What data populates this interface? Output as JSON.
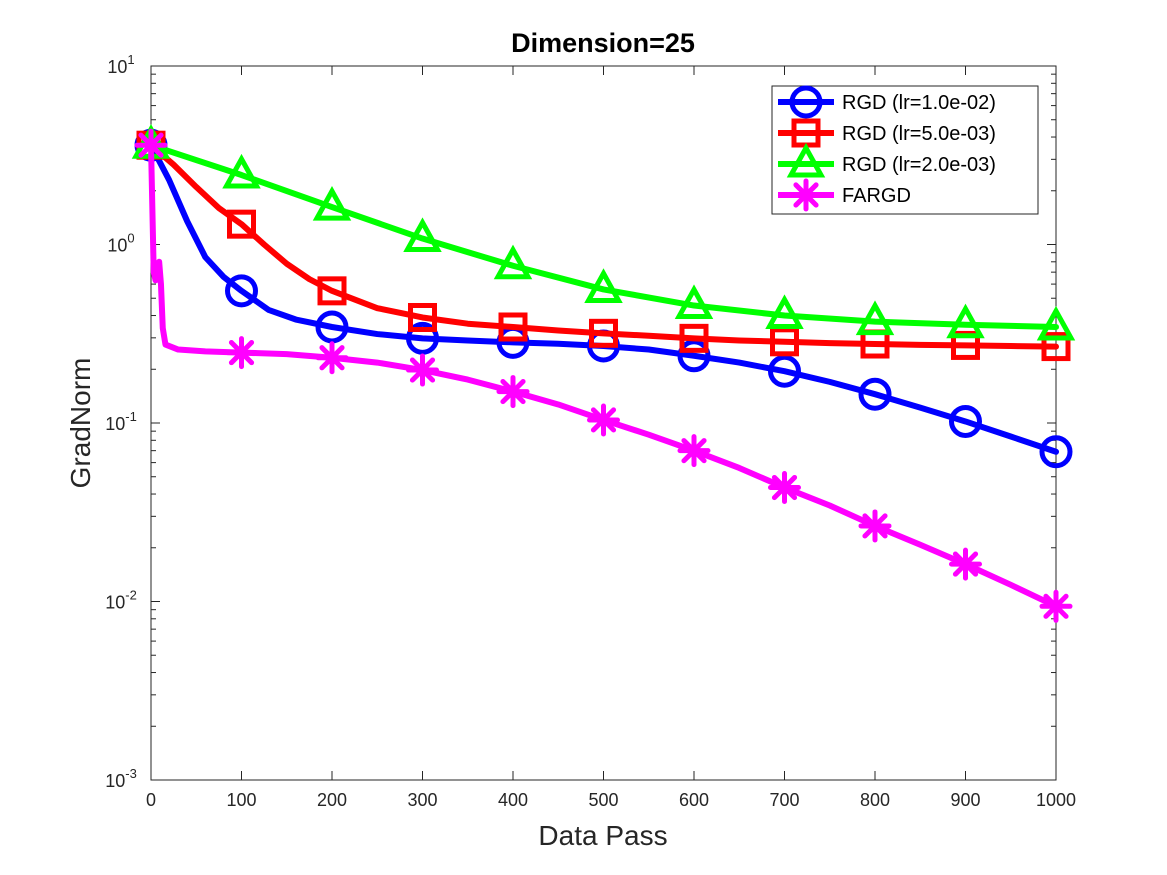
{
  "chart_data": {
    "type": "line",
    "title": "Dimension=25",
    "xlabel": "Data Pass",
    "ylabel": "GradNorm",
    "xlim": [
      0,
      1000
    ],
    "ylim": [
      0.001,
      10
    ],
    "yscale": "log",
    "grid": false,
    "legend_position": "top-right",
    "x_ticks": [
      0,
      100,
      200,
      300,
      400,
      500,
      600,
      700,
      800,
      900,
      1000
    ],
    "y_ticks": [
      {
        "value": 0.001,
        "base": "10",
        "exp": "-3"
      },
      {
        "value": 0.01,
        "base": "10",
        "exp": "-2"
      },
      {
        "value": 0.1,
        "base": "10",
        "exp": "-1"
      },
      {
        "value": 1,
        "base": "10",
        "exp": "0"
      },
      {
        "value": 10,
        "base": "10",
        "exp": "1"
      }
    ],
    "series": [
      {
        "name": "RGD (lr=1.0e-02)",
        "color": "#0000ff",
        "marker": "circle",
        "x": [
          0,
          20,
          40,
          60,
          80,
          100,
          130,
          160,
          200,
          250,
          300,
          350,
          400,
          450,
          500,
          550,
          600,
          650,
          700,
          750,
          800,
          850,
          900,
          950,
          1000
        ],
        "values": [
          3.6,
          2.3,
          1.35,
          0.85,
          0.66,
          0.55,
          0.43,
          0.38,
          0.345,
          0.315,
          0.298,
          0.29,
          0.283,
          0.278,
          0.27,
          0.258,
          0.238,
          0.218,
          0.195,
          0.17,
          0.145,
          0.122,
          0.102,
          0.084,
          0.069
        ],
        "marker_x": [
          0,
          100,
          200,
          300,
          400,
          500,
          600,
          700,
          800,
          900,
          1000
        ],
        "marker_values": [
          3.6,
          0.55,
          0.345,
          0.298,
          0.283,
          0.27,
          0.238,
          0.195,
          0.145,
          0.102,
          0.069
        ]
      },
      {
        "name": "RGD (lr=5.0e-03)",
        "color": "#ff0000",
        "marker": "square",
        "x": [
          0,
          25,
          50,
          75,
          100,
          125,
          150,
          175,
          200,
          250,
          300,
          350,
          400,
          450,
          500,
          550,
          600,
          650,
          700,
          750,
          800,
          850,
          900,
          950,
          1000
        ],
        "values": [
          3.6,
          2.8,
          2.1,
          1.6,
          1.3,
          1.0,
          0.78,
          0.64,
          0.55,
          0.44,
          0.39,
          0.36,
          0.345,
          0.33,
          0.318,
          0.308,
          0.298,
          0.29,
          0.285,
          0.28,
          0.277,
          0.274,
          0.272,
          0.27,
          0.268
        ],
        "marker_x": [
          0,
          100,
          200,
          300,
          400,
          500,
          600,
          700,
          800,
          900,
          1000
        ],
        "marker_values": [
          3.6,
          1.3,
          0.55,
          0.39,
          0.345,
          0.318,
          0.298,
          0.285,
          0.277,
          0.272,
          0.268
        ]
      },
      {
        "name": "RGD (lr=2.0e-03)",
        "color": "#00ff00",
        "marker": "triangle",
        "x": [
          0,
          100,
          200,
          300,
          400,
          500,
          600,
          700,
          800,
          900,
          1000
        ],
        "values": [
          3.6,
          2.45,
          1.62,
          1.08,
          0.76,
          0.56,
          0.455,
          0.4,
          0.37,
          0.355,
          0.345
        ],
        "marker_x": [
          0,
          100,
          200,
          300,
          400,
          500,
          600,
          700,
          800,
          900,
          1000
        ],
        "marker_values": [
          3.6,
          2.45,
          1.62,
          1.08,
          0.76,
          0.56,
          0.455,
          0.4,
          0.37,
          0.355,
          0.345
        ]
      },
      {
        "name": "FARGD",
        "color": "#ff00ff",
        "marker": "asterisk",
        "x": [
          0,
          3,
          5,
          7,
          9,
          11,
          13,
          16,
          30,
          60,
          100,
          150,
          200,
          250,
          300,
          350,
          400,
          450,
          500,
          550,
          600,
          650,
          700,
          750,
          800,
          850,
          900,
          950,
          1000
        ],
        "values": [
          3.6,
          0.7,
          0.63,
          0.72,
          0.8,
          0.6,
          0.34,
          0.275,
          0.258,
          0.252,
          0.248,
          0.243,
          0.232,
          0.218,
          0.198,
          0.175,
          0.15,
          0.127,
          0.104,
          0.086,
          0.07,
          0.056,
          0.0435,
          0.0345,
          0.0265,
          0.0208,
          0.0162,
          0.0124,
          0.0094
        ],
        "marker_x": [
          0,
          100,
          200,
          300,
          400,
          500,
          600,
          700,
          800,
          900,
          1000
        ],
        "marker_values": [
          3.6,
          0.248,
          0.232,
          0.198,
          0.15,
          0.104,
          0.07,
          0.0435,
          0.0265,
          0.0162,
          0.0094
        ]
      }
    ]
  }
}
